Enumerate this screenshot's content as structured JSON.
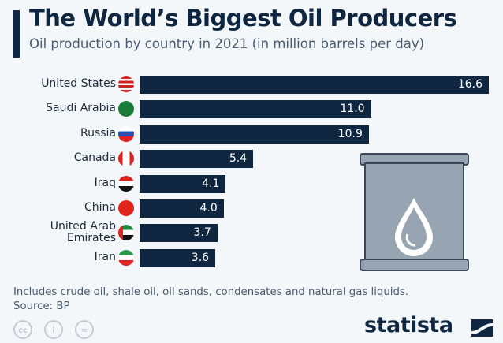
{
  "header": {
    "title": "The World’s Biggest Oil Producers",
    "subtitle": "Oil production by country in 2021 (in million barrels per day)"
  },
  "chart_data": {
    "type": "bar",
    "orientation": "horizontal",
    "title": "The World’s Biggest Oil Producers",
    "subtitle": "Oil production by country in 2021 (in million barrels per day)",
    "categories": [
      "United States",
      "Saudi Arabia",
      "Russia",
      "Canada",
      "Iraq",
      "China",
      "United Arab Emirates",
      "Iran"
    ],
    "values": [
      16.6,
      11.0,
      10.9,
      5.4,
      4.1,
      4.0,
      3.7,
      3.6
    ],
    "value_labels": [
      "16.6",
      "11.0",
      "10.9",
      "5.4",
      "4.1",
      "4.0",
      "3.7",
      "3.6"
    ],
    "xlim": [
      0,
      16.6
    ],
    "grid": false,
    "bar_color": "#0f2640"
  },
  "labels": [
    "United States",
    "Saudi Arabia",
    "Russia",
    "Canada",
    "Iraq",
    "China",
    "United Arab\nEmirates",
    "Iran"
  ],
  "footer": {
    "note": "Includes crude oil, shale oil, oil sands, condensates and natural gas liquids.",
    "source": "Source: BP",
    "brand": "statista"
  },
  "license_icons": [
    "cc",
    "by",
    "nd"
  ],
  "colors": {
    "bar": "#0f2640",
    "background": "#f4f7fa",
    "barrel": "#97a4b1"
  }
}
